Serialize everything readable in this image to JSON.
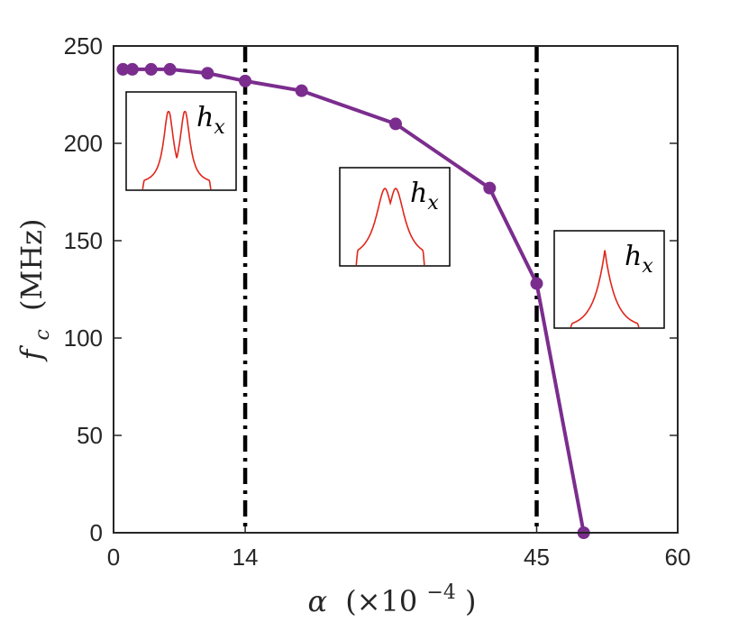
{
  "chart_data": {
    "type": "line",
    "xlabel": {
      "symbol": "α",
      "open": "(×10",
      "exponent": "−4",
      "close": ")"
    },
    "ylabel": {
      "symbol": "f",
      "subscript": "c",
      "unit": "(MHz)"
    },
    "xlim": [
      0,
      60
    ],
    "ylim": [
      0,
      250
    ],
    "xticks": [
      0,
      14,
      45,
      60
    ],
    "yticks": [
      0,
      50,
      100,
      150,
      200,
      250
    ],
    "series": [
      {
        "color": "#7B2D8E",
        "marker": "circle",
        "points": [
          {
            "x": 1,
            "y": 238
          },
          {
            "x": 2,
            "y": 238
          },
          {
            "x": 4,
            "y": 238
          },
          {
            "x": 6,
            "y": 238
          },
          {
            "x": 10,
            "y": 236
          },
          {
            "x": 14,
            "y": 232
          },
          {
            "x": 20,
            "y": 227
          },
          {
            "x": 30,
            "y": 210
          },
          {
            "x": 40,
            "y": 177
          },
          {
            "x": 45,
            "y": 128
          },
          {
            "x": 50,
            "y": 0
          }
        ]
      }
    ],
    "vertical_lines": [
      {
        "x": 14,
        "style": "dash-dot",
        "color": "#000000"
      },
      {
        "x": 45,
        "style": "dash-dot",
        "color": "#000000"
      }
    ],
    "insets": [
      {
        "label_symbol": "h",
        "label_subscript": "x",
        "shape": "double-peak-split",
        "curve_color": "#E0261B"
      },
      {
        "label_symbol": "h",
        "label_subscript": "x",
        "shape": "double-peak-merged",
        "curve_color": "#E0261B"
      },
      {
        "label_symbol": "h",
        "label_subscript": "x",
        "shape": "single-peak",
        "curve_color": "#E0261B"
      }
    ],
    "grid": false,
    "legend": "none"
  }
}
